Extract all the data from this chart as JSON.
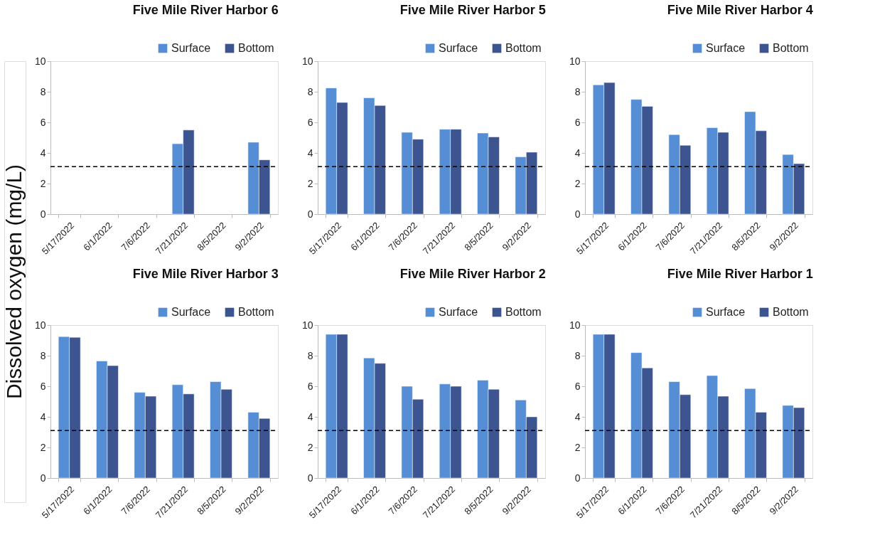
{
  "chart_data": [
    {
      "type": "bar",
      "title": "Five Mile River Harbor 6",
      "ylabel": "Dissolved oxygen (mg/L)",
      "categories": [
        "5/17/2022",
        "6/1/2022",
        "7/6/2022",
        "7/21/2022",
        "8/5/2022",
        "9/2/2022"
      ],
      "series": [
        {
          "name": "Surface",
          "color": "#558ed5",
          "values": [
            null,
            null,
            null,
            4.6,
            null,
            4.7
          ]
        },
        {
          "name": "Bottom",
          "color": "#3c5590",
          "values": [
            null,
            null,
            null,
            5.5,
            null,
            3.55
          ]
        }
      ],
      "ylim": [
        0,
        10
      ],
      "yticks": [
        0,
        2,
        4,
        6,
        8,
        10
      ],
      "legend": "top right",
      "ref_lines": [
        {
          "axis": "y",
          "value": 3.1,
          "color": "#000000",
          "line_style": "dashed"
        }
      ]
    },
    {
      "type": "bar",
      "title": "Five Mile River Harbor 5",
      "categories": [
        "5/17/2022",
        "6/1/2022",
        "7/6/2022",
        "7/21/2022",
        "8/5/2022",
        "9/2/2022"
      ],
      "series": [
        {
          "name": "Surface",
          "color": "#558ed5",
          "values": [
            8.25,
            7.6,
            5.35,
            5.55,
            5.3,
            3.75
          ]
        },
        {
          "name": "Bottom",
          "color": "#3c5590",
          "values": [
            7.3,
            7.1,
            4.9,
            5.55,
            5.05,
            4.05
          ]
        }
      ],
      "ylim": [
        0,
        10
      ],
      "yticks": [
        0,
        2,
        4,
        6,
        8,
        10
      ],
      "legend": "top right",
      "ref_lines": [
        {
          "axis": "y",
          "value": 3.1,
          "color": "#000000",
          "line_style": "dashed"
        }
      ]
    },
    {
      "type": "bar",
      "title": "Five Mile River Harbor 4",
      "categories": [
        "5/17/2022",
        "6/1/2022",
        "7/6/2022",
        "7/21/2022",
        "8/5/2022",
        "9/2/2022"
      ],
      "series": [
        {
          "name": "Surface",
          "color": "#558ed5",
          "values": [
            8.45,
            7.5,
            5.2,
            5.65,
            6.7,
            3.9
          ]
        },
        {
          "name": "Bottom",
          "color": "#3c5590",
          "values": [
            8.6,
            7.05,
            4.5,
            5.35,
            5.45,
            3.3
          ]
        }
      ],
      "ylim": [
        0,
        10
      ],
      "yticks": [
        0,
        2,
        4,
        6,
        8,
        10
      ],
      "legend": "top right",
      "ref_lines": [
        {
          "axis": "y",
          "value": 3.1,
          "color": "#000000",
          "line_style": "dashed"
        }
      ]
    },
    {
      "type": "bar",
      "title": "Five Mile River Harbor 3",
      "categories": [
        "5/17/2022",
        "6/1/2022",
        "7/6/2022",
        "7/21/2022",
        "8/5/2022",
        "9/2/2022"
      ],
      "series": [
        {
          "name": "Surface",
          "color": "#558ed5",
          "values": [
            9.25,
            7.65,
            5.6,
            6.1,
            6.3,
            4.3
          ]
        },
        {
          "name": "Bottom",
          "color": "#3c5590",
          "values": [
            9.2,
            7.35,
            5.35,
            5.5,
            5.8,
            3.9
          ]
        }
      ],
      "ylim": [
        0,
        10
      ],
      "yticks": [
        0,
        2,
        4,
        6,
        8,
        10
      ],
      "legend": "top right",
      "ref_lines": [
        {
          "axis": "y",
          "value": 3.1,
          "color": "#000000",
          "line_style": "dashed"
        }
      ]
    },
    {
      "type": "bar",
      "title": "Five Mile River Harbor 2",
      "categories": [
        "5/17/2022",
        "6/1/2022",
        "7/6/2022",
        "7/21/2022",
        "8/5/2022",
        "9/2/2022"
      ],
      "series": [
        {
          "name": "Surface",
          "color": "#558ed5",
          "values": [
            9.4,
            7.85,
            6.0,
            6.15,
            6.4,
            5.1
          ]
        },
        {
          "name": "Bottom",
          "color": "#3c5590",
          "values": [
            9.4,
            7.5,
            5.15,
            6.0,
            5.8,
            4.0
          ]
        }
      ],
      "ylim": [
        0,
        10
      ],
      "yticks": [
        0,
        2,
        4,
        6,
        8,
        10
      ],
      "legend": "top right",
      "ref_lines": [
        {
          "axis": "y",
          "value": 3.1,
          "color": "#000000",
          "line_style": "dashed"
        }
      ]
    },
    {
      "type": "bar",
      "title": "Five Mile River Harbor 1",
      "categories": [
        "5/17/2022",
        "6/1/2022",
        "7/6/2022",
        "7/21/2022",
        "8/5/2022",
        "9/2/2022"
      ],
      "series": [
        {
          "name": "Surface",
          "color": "#558ed5",
          "values": [
            9.4,
            8.2,
            6.3,
            6.7,
            5.85,
            4.75
          ]
        },
        {
          "name": "Bottom",
          "color": "#3c5590",
          "values": [
            9.4,
            7.2,
            5.45,
            5.35,
            4.3,
            4.6
          ]
        }
      ],
      "ylim": [
        0,
        10
      ],
      "yticks": [
        0,
        2,
        4,
        6,
        8,
        10
      ],
      "legend": "top right",
      "ref_lines": [
        {
          "axis": "y",
          "value": 3.1,
          "color": "#000000",
          "line_style": "dashed"
        }
      ]
    }
  ]
}
